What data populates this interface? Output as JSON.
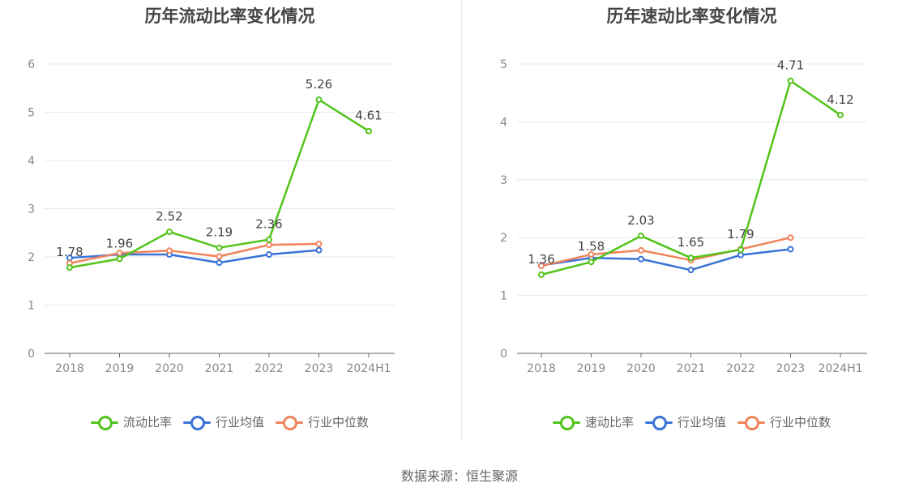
{
  "chart_data": [
    {
      "type": "line",
      "title": "历年流动比率变化情况",
      "categories": [
        "2018",
        "2019",
        "2020",
        "2021",
        "2022",
        "2023",
        "2024H1"
      ],
      "ylim": [
        0,
        6
      ],
      "yticks": [
        0,
        1,
        2,
        3,
        4,
        5,
        6
      ],
      "grid": true,
      "legend_position": "bottom",
      "series": [
        {
          "name": "流动比率",
          "color": "#52c41a",
          "values": [
            1.78,
            1.96,
            2.52,
            2.19,
            2.36,
            5.26,
            4.61
          ],
          "labels": [
            "1.78",
            "1.96",
            "2.52",
            "2.19",
            "2.36",
            "5.26",
            "4.61"
          ]
        },
        {
          "name": "行业均值",
          "color": "#3a73d6",
          "values": [
            1.98,
            2.05,
            2.05,
            1.88,
            2.05,
            2.14,
            null
          ]
        },
        {
          "name": "行业中位数",
          "color": "#f0845c",
          "values": [
            1.87,
            2.08,
            2.13,
            2.01,
            2.25,
            2.27,
            null
          ]
        }
      ]
    },
    {
      "type": "line",
      "title": "历年速动比率变化情况",
      "categories": [
        "2018",
        "2019",
        "2020",
        "2021",
        "2022",
        "2023",
        "2024H1"
      ],
      "ylim": [
        0,
        5
      ],
      "yticks": [
        0,
        1,
        2,
        3,
        4,
        5
      ],
      "grid": true,
      "legend_position": "bottom",
      "series": [
        {
          "name": "速动比率",
          "color": "#52c41a",
          "values": [
            1.36,
            1.58,
            2.03,
            1.65,
            1.79,
            4.71,
            4.12
          ],
          "labels": [
            "1.36",
            "1.58",
            "2.03",
            "1.65",
            "1.79",
            "4.71",
            "4.12"
          ]
        },
        {
          "name": "行业均值",
          "color": "#3a73d6",
          "values": [
            1.52,
            1.65,
            1.63,
            1.44,
            1.7,
            1.8,
            null
          ]
        },
        {
          "name": "行业中位数",
          "color": "#f0845c",
          "values": [
            1.51,
            1.71,
            1.78,
            1.61,
            1.8,
            2.0,
            null
          ]
        }
      ]
    }
  ],
  "footer": {
    "source": "数据来源：恒生聚源"
  }
}
